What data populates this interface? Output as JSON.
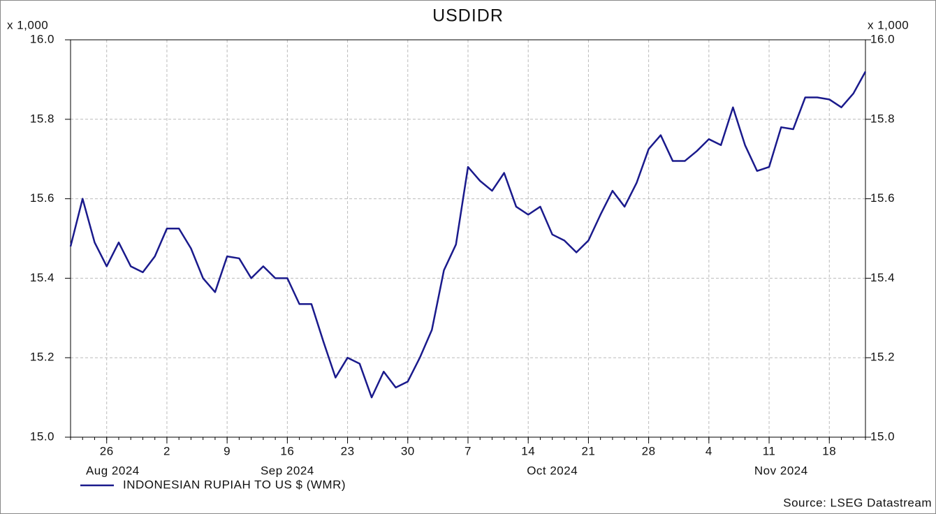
{
  "chart_data": {
    "type": "line",
    "title": "USDIDR",
    "y_unit_label": "x 1,000",
    "source": "Source: LSEG Datastream",
    "categories": [
      null,
      null,
      null,
      "26",
      null,
      null,
      null,
      null,
      "2",
      null,
      null,
      null,
      null,
      "9",
      null,
      null,
      null,
      null,
      "16",
      null,
      null,
      null,
      null,
      "23",
      null,
      null,
      null,
      null,
      "30",
      null,
      null,
      null,
      null,
      "7",
      null,
      null,
      null,
      null,
      "14",
      null,
      null,
      null,
      null,
      "21",
      null,
      null,
      null,
      null,
      "28",
      null,
      null,
      null,
      null,
      "4",
      null,
      null,
      null,
      null,
      "11",
      null,
      null,
      null,
      null,
      "18",
      null,
      null,
      null
    ],
    "months": [
      {
        "label": "Aug 2024",
        "count": 8
      },
      {
        "label": "Sep 2024",
        "count": 21
      },
      {
        "label": "Oct 2024",
        "count": 23
      },
      {
        "label": "Nov 2024",
        "count": 15
      }
    ],
    "series": [
      {
        "name": "INDONESIAN RUPIAH TO US $ (WMR)",
        "color": "#1a1a8c",
        "values": [
          15.48,
          15.6,
          15.49,
          15.43,
          15.49,
          15.43,
          15.415,
          15.455,
          15.525,
          15.525,
          15.475,
          15.4,
          15.365,
          15.455,
          15.45,
          15.4,
          15.43,
          15.4,
          15.4,
          15.335,
          15.335,
          15.24,
          15.15,
          15.2,
          15.185,
          15.1,
          15.165,
          15.125,
          15.14,
          15.2,
          15.27,
          15.42,
          15.485,
          15.68,
          15.645,
          15.62,
          15.665,
          15.58,
          15.56,
          15.58,
          15.51,
          15.495,
          15.465,
          15.495,
          15.56,
          15.62,
          15.58,
          15.64,
          15.725,
          15.76,
          15.695,
          15.695,
          15.72,
          15.75,
          15.735,
          15.83,
          15.735,
          15.67,
          15.68,
          15.78,
          15.775,
          15.855,
          15.855,
          15.85,
          15.83,
          15.865,
          15.92
        ]
      }
    ],
    "ylim": [
      15,
      16
    ],
    "yticks": [
      {
        "value": 15,
        "label": "15.0"
      },
      {
        "value": 15.2,
        "label": "15.2"
      },
      {
        "value": 15.4,
        "label": "15.4"
      },
      {
        "value": 15.6,
        "label": "15.6"
      },
      {
        "value": 15.8,
        "label": "15.8"
      },
      {
        "value": 16,
        "label": "16.0"
      }
    ],
    "grid": true,
    "legend": "bottom-left"
  }
}
